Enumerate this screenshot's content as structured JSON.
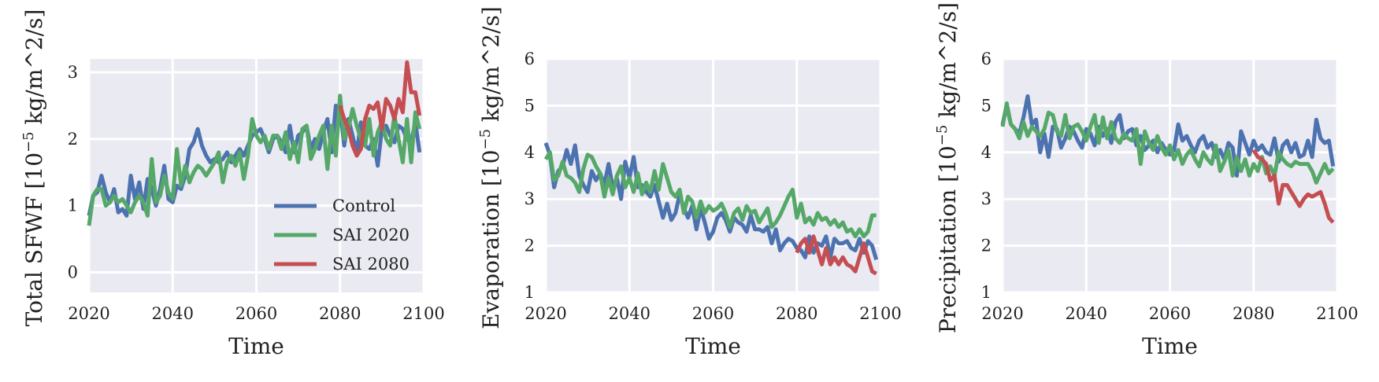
{
  "chart_data": [
    {
      "type": "line",
      "ylabel_pre": "Total SFWF [10",
      "ylabel_exp": "−5",
      "ylabel_post": " kg/m^2/s]",
      "xlabel": "Time",
      "xlim": [
        2020,
        2100
      ],
      "ylim": [
        -0.3,
        3.2
      ],
      "xticks": [
        2020,
        2040,
        2060,
        2080,
        2100
      ],
      "yticks": [
        0,
        1,
        2,
        3
      ],
      "legend": "lower-right",
      "series": [
        {
          "name": "Control",
          "color": "#4c72b0",
          "x_start": 2020,
          "values": [
            0.85,
            1.15,
            1.2,
            1.45,
            1.2,
            1.05,
            1.25,
            0.9,
            0.95,
            0.85,
            1.45,
            1.1,
            1.35,
            0.95,
            1.4,
            1.25,
            1.0,
            1.25,
            1.6,
            1.1,
            1.05,
            1.3,
            1.25,
            1.45,
            1.85,
            1.95,
            2.15,
            1.9,
            1.75,
            1.65,
            1.7,
            1.65,
            1.7,
            1.8,
            1.65,
            1.75,
            1.85,
            1.75,
            1.9,
            2.05,
            2.1,
            2.15,
            2.0,
            1.8,
            2.0,
            2.05,
            1.95,
            1.8,
            2.2,
            1.8,
            2.05,
            2.1,
            2.2,
            1.85,
            2.0,
            1.85,
            2.1,
            2.3,
            1.8,
            2.5,
            2.45,
            1.9,
            2.3,
            2.05,
            1.8,
            2.25,
            1.9,
            1.85,
            2.0,
            1.6,
            2.15,
            2.2,
            2.05,
            1.95,
            2.2,
            2.15,
            2.0,
            1.95,
            2.25,
            1.8
          ]
        },
        {
          "name": "SAI 2020",
          "color": "#55a868",
          "x_start": 2020,
          "values": [
            0.7,
            1.15,
            1.25,
            1.25,
            1.0,
            1.05,
            1.15,
            1.05,
            1.1,
            1.0,
            0.9,
            1.05,
            1.15,
            1.05,
            0.85,
            1.7,
            1.05,
            1.15,
            1.45,
            1.2,
            1.1,
            1.85,
            1.3,
            1.6,
            1.35,
            1.5,
            1.6,
            1.55,
            1.45,
            1.55,
            1.65,
            1.8,
            1.35,
            1.65,
            1.75,
            1.6,
            1.8,
            1.4,
            1.75,
            2.3,
            2.05,
            1.95,
            2.05,
            1.85,
            2.05,
            2.05,
            1.85,
            2.1,
            1.7,
            1.95,
            1.65,
            2.15,
            2.2,
            1.7,
            1.85,
            2.05,
            2.2,
            1.55,
            2.2,
            1.75,
            2.65,
            2.0,
            2.15,
            2.45,
            2.2,
            2.0,
            1.9,
            2.3,
            1.75,
            2.1,
            2.25,
            2.0,
            1.9,
            2.35,
            2.0,
            1.65,
            2.3,
            1.65,
            2.4,
            2.15
          ]
        },
        {
          "name": "SAI 2080",
          "color": "#c44e52",
          "x_start": 2080,
          "values": [
            2.5,
            2.3,
            2.15,
            1.9,
            1.75,
            1.85,
            2.3,
            2.5,
            2.45,
            2.55,
            2.15,
            2.6,
            2.5,
            2.3,
            2.6,
            2.4,
            3.15,
            2.7,
            2.7,
            2.35
          ]
        }
      ]
    },
    {
      "type": "line",
      "ylabel_pre": "Evaporation [10",
      "ylabel_exp": "−5",
      "ylabel_post": " kg/m^2/s]",
      "xlabel": "Time",
      "xlim": [
        2020,
        2100
      ],
      "ylim": [
        1,
        6
      ],
      "xticks": [
        2020,
        2040,
        2060,
        2080,
        2100
      ],
      "yticks": [
        1,
        2,
        3,
        4,
        5,
        6
      ],
      "series": [
        {
          "name": "Control",
          "color": "#4c72b0",
          "x_start": 2020,
          "values": [
            4.2,
            3.95,
            3.25,
            3.6,
            3.7,
            4.05,
            3.75,
            4.15,
            3.5,
            3.3,
            3.15,
            3.6,
            3.4,
            3.55,
            3.3,
            3.75,
            3.25,
            3.45,
            3.0,
            3.8,
            3.45,
            3.9,
            3.25,
            3.3,
            3.15,
            3.05,
            3.3,
            2.95,
            2.6,
            2.9,
            2.55,
            2.7,
            3.1,
            2.8,
            2.6,
            2.85,
            2.35,
            2.8,
            2.5,
            2.15,
            2.3,
            2.6,
            2.7,
            2.55,
            2.3,
            2.6,
            2.5,
            2.45,
            2.3,
            2.65,
            2.35,
            2.35,
            2.3,
            2.4,
            2.05,
            2.35,
            1.9,
            2.05,
            2.15,
            2.1,
            1.95,
            1.9,
            1.75,
            2.2,
            1.85,
            2.05,
            2.0,
            2.2,
            1.75,
            2.15,
            2.05,
            2.05,
            2.1,
            1.95,
            1.9,
            2.15,
            1.85,
            2.1,
            2.0,
            1.7
          ]
        },
        {
          "name": "SAI 2020",
          "color": "#55a868",
          "x_start": 2020,
          "values": [
            3.85,
            4.0,
            3.4,
            3.5,
            3.8,
            3.5,
            3.45,
            3.35,
            3.15,
            3.65,
            3.95,
            3.9,
            3.7,
            3.55,
            3.05,
            3.45,
            3.1,
            3.5,
            3.7,
            3.25,
            3.45,
            3.15,
            3.55,
            3.1,
            3.35,
            3.15,
            3.6,
            3.2,
            3.75,
            3.45,
            3.15,
            3.05,
            3.2,
            2.7,
            3.05,
            2.95,
            2.6,
            2.95,
            2.7,
            2.85,
            2.75,
            2.8,
            2.9,
            2.7,
            2.4,
            2.7,
            2.8,
            2.55,
            2.85,
            2.7,
            2.75,
            2.5,
            2.65,
            2.8,
            2.4,
            2.5,
            2.65,
            2.85,
            3.05,
            3.2,
            2.6,
            2.9,
            2.5,
            2.6,
            2.45,
            2.7,
            2.55,
            2.6,
            2.45,
            2.55,
            2.4,
            2.5,
            2.3,
            2.35,
            2.2,
            2.35,
            2.2,
            2.3,
            2.65,
            2.65
          ]
        },
        {
          "name": "SAI 2080",
          "color": "#c44e52",
          "x_start": 2080,
          "values": [
            1.85,
            2.05,
            2.15,
            1.85,
            2.2,
            1.9,
            1.6,
            1.95,
            1.6,
            1.75,
            1.6,
            1.75,
            1.6,
            1.55,
            1.45,
            1.75,
            2.05,
            1.75,
            1.45,
            1.4
          ]
        }
      ]
    },
    {
      "type": "line",
      "ylabel_pre": "Precipitation [10",
      "ylabel_exp": "−5",
      "ylabel_post": " kg/m^2/s]",
      "xlabel": "Time",
      "xlim": [
        2020,
        2100
      ],
      "ylim": [
        1,
        6
      ],
      "xticks": [
        2020,
        2040,
        2060,
        2080,
        2100
      ],
      "yticks": [
        1,
        2,
        3,
        4,
        5,
        6
      ],
      "series": [
        {
          "name": "Control",
          "color": "#4c72b0",
          "x_start": 2020,
          "values": [
            4.6,
            5.0,
            4.6,
            4.5,
            4.4,
            4.75,
            5.2,
            4.6,
            4.7,
            4.0,
            4.4,
            3.9,
            4.55,
            4.5,
            4.1,
            4.3,
            4.55,
            4.45,
            4.25,
            4.1,
            4.5,
            4.4,
            4.15,
            4.55,
            4.35,
            4.5,
            4.2,
            4.65,
            4.8,
            4.3,
            4.45,
            4.5,
            4.15,
            4.35,
            4.05,
            4.15,
            4.25,
            4.0,
            4.2,
            4.05,
            3.95,
            4.05,
            4.6,
            4.25,
            4.35,
            4.15,
            4.0,
            4.25,
            4.35,
            4.1,
            4.2,
            3.9,
            4.05,
            3.85,
            4.2,
            4.1,
            3.5,
            4.45,
            4.2,
            3.95,
            4.25,
            4.05,
            4.15,
            4.0,
            3.95,
            4.3,
            3.8,
            4.15,
            4.25,
            4.0,
            4.2,
            3.9,
            3.95,
            4.25,
            3.9,
            4.7,
            4.3,
            4.2,
            4.25,
            3.7
          ]
        },
        {
          "name": "SAI 2020",
          "color": "#55a868",
          "x_start": 2020,
          "values": [
            4.55,
            5.05,
            4.6,
            4.5,
            4.3,
            4.65,
            4.35,
            4.55,
            4.45,
            4.35,
            4.5,
            4.85,
            4.8,
            4.45,
            4.35,
            4.8,
            4.3,
            4.55,
            4.6,
            4.45,
            4.25,
            4.55,
            4.8,
            4.2,
            4.75,
            4.3,
            4.65,
            4.3,
            4.2,
            4.4,
            4.3,
            4.25,
            4.5,
            3.75,
            4.45,
            4.2,
            4.05,
            4.35,
            4.1,
            3.95,
            4.15,
            3.85,
            4.05,
            3.75,
            3.95,
            4.05,
            3.85,
            3.7,
            4.0,
            3.85,
            3.75,
            4.15,
            3.6,
            3.8,
            4.05,
            3.5,
            3.9,
            3.6,
            3.85,
            3.5,
            3.75,
            3.6,
            3.9,
            3.55,
            3.7,
            3.5,
            4.0,
            3.85,
            3.75,
            3.7,
            3.8,
            3.75,
            3.75,
            3.75,
            3.6,
            3.35,
            3.55,
            3.75,
            3.55,
            3.65
          ]
        },
        {
          "name": "SAI 2080",
          "color": "#c44e52",
          "x_start": 2080,
          "values": [
            4.05,
            3.9,
            3.85,
            3.75,
            3.4,
            3.5,
            2.9,
            3.3,
            3.3,
            3.15,
            3.0,
            2.85,
            3.0,
            3.1,
            3.05,
            3.1,
            3.15,
            2.9,
            2.6,
            2.5
          ]
        }
      ]
    }
  ]
}
